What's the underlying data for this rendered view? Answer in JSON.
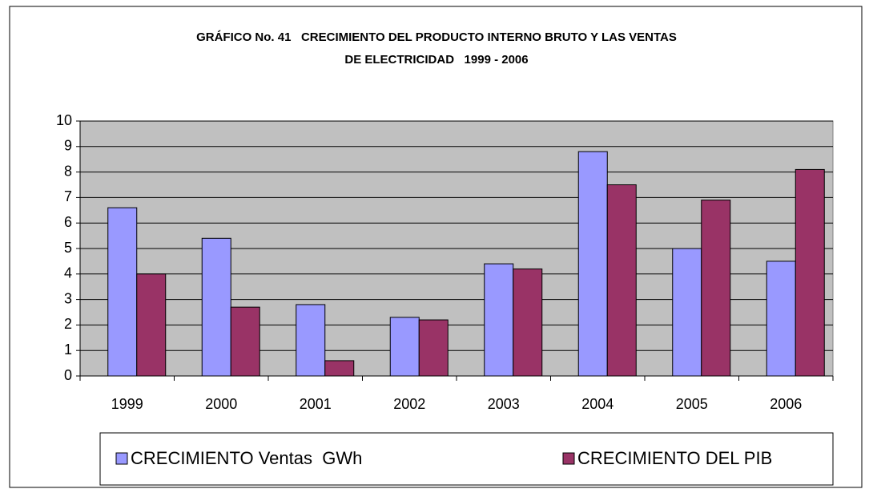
{
  "chart_data": {
    "type": "bar",
    "title": [
      "GRÁFICO No. 41   CRECIMIENTO DEL PRODUCTO INTERNO BRUTO Y LAS VENTAS",
      "DE ELECTRICIDAD   1999 - 2006"
    ],
    "categories": [
      "1999",
      "2000",
      "2001",
      "2002",
      "2003",
      "2004",
      "2005",
      "2006"
    ],
    "series": [
      {
        "name": "CRECIMIENTO Ventas  GWh",
        "color": "#9999ff",
        "values": [
          6.6,
          5.4,
          2.8,
          2.3,
          4.4,
          8.8,
          5.0,
          4.5
        ]
      },
      {
        "name": "CRECIMIENTO DEL PIB",
        "color": "#993366",
        "values": [
          4.0,
          2.7,
          0.6,
          2.2,
          4.2,
          7.5,
          6.9,
          8.1
        ]
      }
    ],
    "ylim": [
      0,
      10
    ],
    "yticks": [
      0,
      1,
      2,
      3,
      4,
      5,
      6,
      7,
      8,
      9,
      10
    ],
    "grid": true,
    "legend": "bottom"
  }
}
